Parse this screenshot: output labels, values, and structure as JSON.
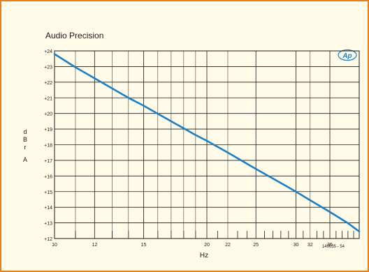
{
  "header": {
    "title": "Audio Precision"
  },
  "logo": {
    "text": "Ap"
  },
  "figure_id": "140035 - 54",
  "colors": {
    "frame": "#e8801e",
    "background": "#fffbe8",
    "curve": "#1a7fc4",
    "grid": "#1a1a1a"
  },
  "chart_data": {
    "type": "line",
    "title": "Audio Precision",
    "xlabel": "Hz",
    "ylabel": "dBr A",
    "x_scale": "log",
    "xlim": [
      10,
      40
    ],
    "ylim": [
      12,
      24
    ],
    "grid": true,
    "x_ticks": [
      10,
      12,
      15,
      20,
      22,
      25,
      30,
      32,
      35
    ],
    "x_tick_labels": [
      "10",
      "12",
      "15",
      "20",
      "22",
      "25",
      "30",
      "32",
      "35"
    ],
    "x_major_gridlines": [
      10,
      12,
      15,
      20,
      25,
      30,
      35,
      40
    ],
    "x_minor_gridlines": [
      11,
      13,
      14,
      16,
      17,
      18,
      19,
      22,
      32
    ],
    "x_small_ticks": [
      11,
      13,
      14,
      16,
      17,
      18,
      19,
      21,
      23,
      24,
      26,
      27,
      28,
      29,
      31,
      33,
      34,
      36,
      37,
      38,
      39
    ],
    "y_ticks": [
      12,
      13,
      14,
      15,
      16,
      17,
      18,
      19,
      20,
      21,
      22,
      23,
      24
    ],
    "y_tick_labels": [
      "+12",
      "+13",
      "+14",
      "+15",
      "+16",
      "+17",
      "+18",
      "+19",
      "+20",
      "+21",
      "+22",
      "+23",
      "+24"
    ],
    "series": [
      {
        "x": [
          10,
          11,
          12,
          13,
          14,
          15,
          16,
          17,
          18,
          19,
          20,
          22,
          25,
          28,
          30,
          32,
          35,
          38,
          40
        ],
        "y": [
          23.8,
          22.95,
          22.25,
          21.6,
          21.0,
          20.5,
          19.98,
          19.5,
          19.05,
          18.62,
          18.25,
          17.5,
          16.45,
          15.55,
          15.0,
          14.45,
          13.7,
          12.98,
          12.45
        ]
      }
    ]
  }
}
